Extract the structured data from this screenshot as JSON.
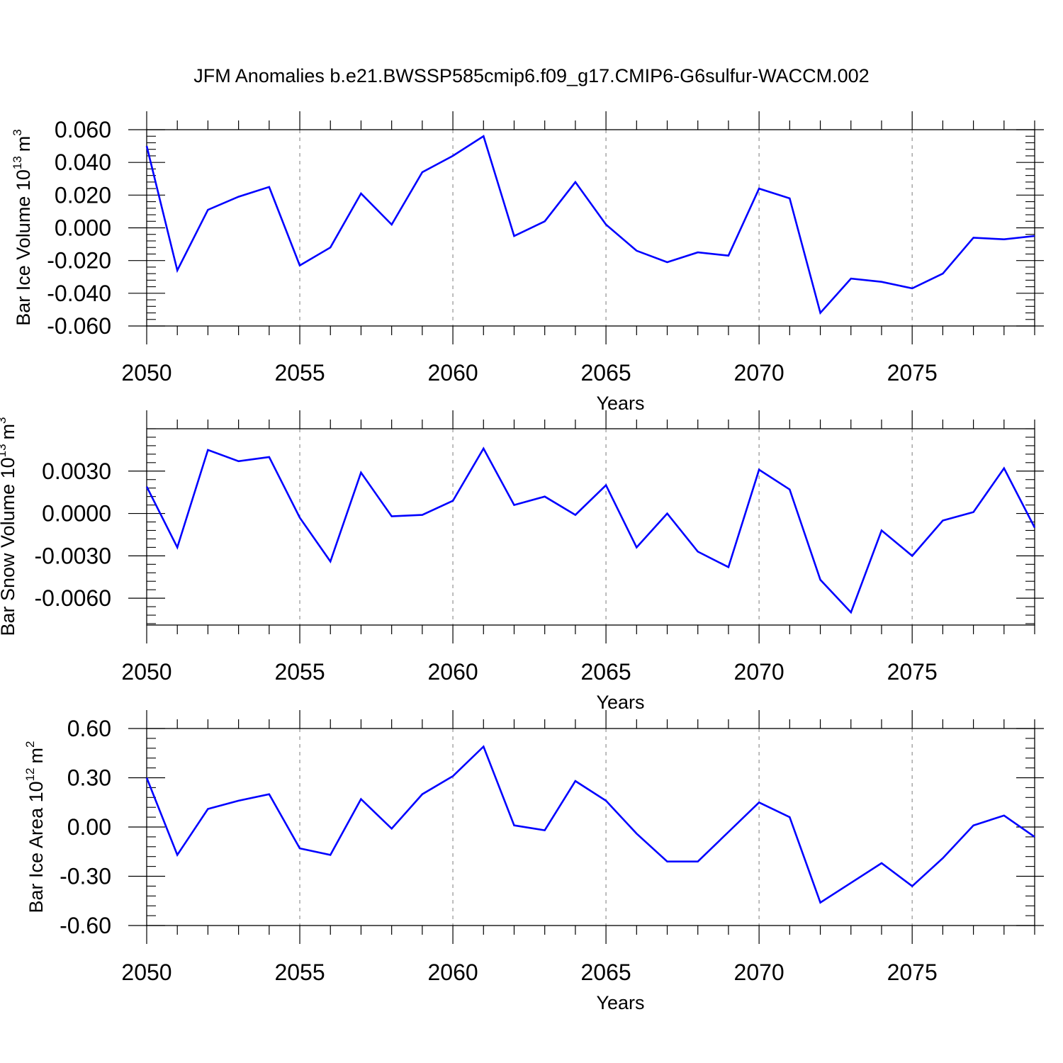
{
  "figure": {
    "title": "JFM Anomalies b.e21.BWSSP585cmip6.f09_g17.CMIP6-G6sulfur-WACCM.002",
    "line_color": "#0000ff",
    "grid_color": "#999999"
  },
  "chart_data": [
    {
      "type": "line",
      "title": "",
      "xlabel": "Years",
      "ylabel": {
        "text": "Bar Ice Volume 10",
        "exp": "13",
        "unit": "m",
        "unit_exp": "3"
      },
      "xlim": [
        2050,
        2079
      ],
      "ylim": [
        -0.06,
        0.06
      ],
      "yticks": [
        "0.060",
        "0.040",
        "0.020",
        "0.000",
        "-0.020",
        "-0.040",
        "-0.060"
      ],
      "ytick_values": [
        0.06,
        0.04,
        0.02,
        0.0,
        -0.02,
        -0.04,
        -0.06
      ],
      "xticks": [
        "2050",
        "2055",
        "2060",
        "2065",
        "2070",
        "2075"
      ],
      "xtick_values": [
        2050,
        2055,
        2060,
        2065,
        2070,
        2075
      ],
      "grid": "vertical dashed at major x ticks",
      "x": [
        2050,
        2051,
        2052,
        2053,
        2054,
        2055,
        2056,
        2057,
        2058,
        2059,
        2060,
        2061,
        2062,
        2063,
        2064,
        2065,
        2066,
        2067,
        2068,
        2069,
        2070,
        2071,
        2072,
        2073,
        2074,
        2075,
        2076,
        2077,
        2078,
        2079
      ],
      "series": [
        {
          "values": [
            0.05,
            -0.026,
            0.011,
            0.019,
            0.025,
            -0.023,
            -0.012,
            0.021,
            0.002,
            0.034,
            0.044,
            0.056,
            -0.005,
            0.004,
            0.028,
            0.002,
            -0.014,
            -0.021,
            -0.015,
            -0.017,
            0.024,
            0.018,
            -0.052,
            -0.031,
            -0.033,
            -0.037,
            -0.028,
            -0.006,
            -0.007,
            -0.005
          ]
        }
      ]
    },
    {
      "type": "line",
      "title": "",
      "xlabel": "Years",
      "ylabel": {
        "text": "Bar Snow Volume 10",
        "exp": "13",
        "unit": "m",
        "unit_exp": "3"
      },
      "xlim": [
        2050,
        2079
      ],
      "ylim": [
        -0.0079,
        0.006
      ],
      "yticks": [
        "0.0030",
        "0.0000",
        "-0.0030",
        "-0.0060"
      ],
      "ytick_values": [
        0.003,
        0.0,
        -0.003,
        -0.006
      ],
      "xticks": [
        "2050",
        "2055",
        "2060",
        "2065",
        "2070",
        "2075"
      ],
      "xtick_values": [
        2050,
        2055,
        2060,
        2065,
        2070,
        2075
      ],
      "grid": "vertical dashed at major x ticks",
      "x": [
        2050,
        2051,
        2052,
        2053,
        2054,
        2055,
        2056,
        2057,
        2058,
        2059,
        2060,
        2061,
        2062,
        2063,
        2064,
        2065,
        2066,
        2067,
        2068,
        2069,
        2070,
        2071,
        2072,
        2073,
        2074,
        2075,
        2076,
        2077,
        2078,
        2079
      ],
      "series": [
        {
          "values": [
            0.0019,
            -0.0024,
            0.0045,
            0.0037,
            0.004,
            -0.0003,
            -0.0034,
            0.0029,
            -0.0002,
            -0.0001,
            0.0009,
            0.0046,
            0.0006,
            0.0012,
            -0.0001,
            0.002,
            -0.0024,
            0.0,
            -0.0027,
            -0.0038,
            0.0031,
            0.0017,
            -0.0047,
            -0.007,
            -0.0012,
            -0.003,
            -0.0005,
            0.0001,
            0.0032,
            -0.001
          ]
        }
      ]
    },
    {
      "type": "line",
      "title": "",
      "xlabel": "Years",
      "ylabel": {
        "text": "Bar Ice Area 10",
        "exp": "12",
        "unit": "m",
        "unit_exp": "2"
      },
      "xlim": [
        2050,
        2079
      ],
      "ylim": [
        -0.6,
        0.6
      ],
      "yticks": [
        "0.60",
        "0.30",
        "0.00",
        "-0.30",
        "-0.60"
      ],
      "ytick_values": [
        0.6,
        0.3,
        0.0,
        -0.3,
        -0.6
      ],
      "xticks": [
        "2050",
        "2055",
        "2060",
        "2065",
        "2070",
        "2075"
      ],
      "xtick_values": [
        2050,
        2055,
        2060,
        2065,
        2070,
        2075
      ],
      "grid": "vertical dashed at major x ticks",
      "x": [
        2050,
        2051,
        2052,
        2053,
        2054,
        2055,
        2056,
        2057,
        2058,
        2059,
        2060,
        2061,
        2062,
        2063,
        2064,
        2065,
        2066,
        2067,
        2068,
        2069,
        2070,
        2071,
        2072,
        2073,
        2074,
        2075,
        2076,
        2077,
        2078,
        2079
      ],
      "series": [
        {
          "values": [
            0.3,
            -0.17,
            0.11,
            0.16,
            0.2,
            -0.13,
            -0.17,
            0.17,
            -0.01,
            0.2,
            0.31,
            0.49,
            0.01,
            -0.02,
            0.28,
            0.16,
            -0.04,
            -0.21,
            -0.21,
            -0.03,
            0.15,
            0.06,
            -0.46,
            -0.34,
            -0.22,
            -0.36,
            -0.19,
            0.01,
            0.07,
            -0.06
          ]
        }
      ]
    }
  ]
}
